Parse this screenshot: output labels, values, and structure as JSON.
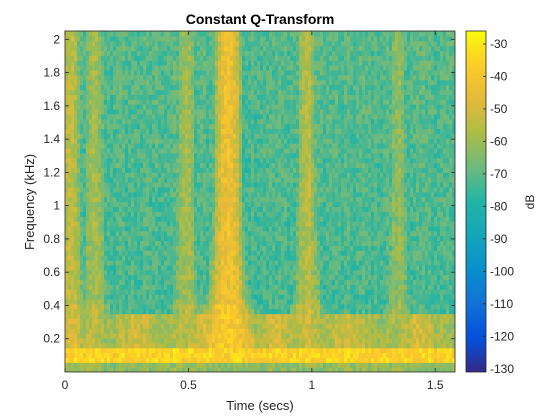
{
  "chart_data": {
    "type": "heatmap",
    "title": "Constant Q-Transform",
    "xlabel": "Time (secs)",
    "ylabel": "Frequency (kHz)",
    "xlim": [
      0,
      1.58
    ],
    "ylim": [
      0,
      2.05
    ],
    "x_ticks": [
      0,
      0.5,
      1,
      1.5
    ],
    "x_tick_labels": [
      "0",
      "0.5",
      "1",
      "1.5"
    ],
    "y_ticks": [
      0.2,
      0.4,
      0.6,
      0.8,
      1,
      1.2,
      1.4,
      1.6,
      1.8,
      2
    ],
    "y_tick_labels": [
      "0.2",
      "0.4",
      "0.6",
      "0.8",
      "1",
      "1.2",
      "1.4",
      "1.6",
      "1.8",
      "2"
    ],
    "colormap": "parula",
    "colorbar": {
      "label": "dB",
      "clim": [
        -131,
        -26
      ],
      "ticks": [
        -30,
        -40,
        -50,
        -60,
        -70,
        -80,
        -90,
        -100,
        -110,
        -120,
        -130
      ],
      "tick_labels": [
        "-30",
        "-40",
        "-50",
        "-60",
        "-70",
        "-80",
        "-90",
        "-100",
        "-110",
        "-120",
        "-130"
      ],
      "placement": "right"
    },
    "features": [
      {
        "time": 0.02,
        "level_db": -50
      },
      {
        "time": 0.12,
        "level_db": -55
      },
      {
        "time": 0.49,
        "level_db": -55
      },
      {
        "time": 0.66,
        "level_db": -38
      },
      {
        "time": 0.98,
        "level_db": -52
      },
      {
        "time": 1.35,
        "level_db": -58
      }
    ]
  }
}
